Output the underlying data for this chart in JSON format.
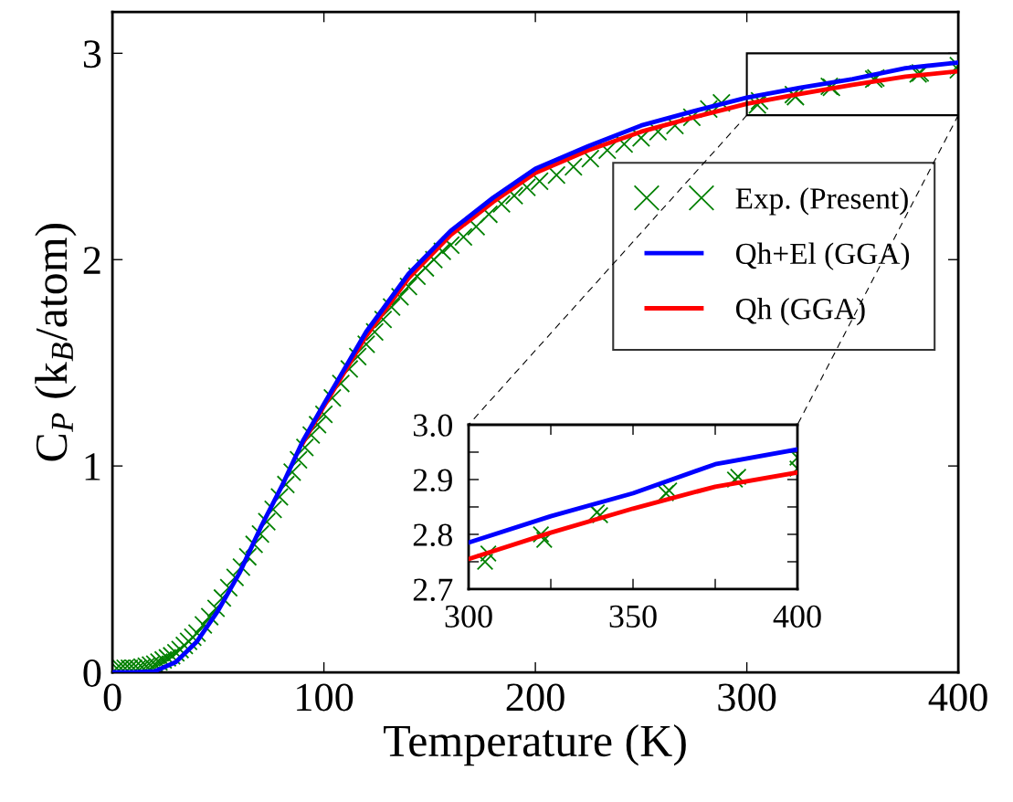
{
  "chart_data": [
    {
      "type": "line",
      "xlabel": "Temperature (K)",
      "ylabel": "C$_{P}$ (k$_{B}$/atom)",
      "xlim": [
        0,
        400
      ],
      "ylim": [
        0,
        3.2
      ],
      "xticks": [
        0,
        100,
        200,
        300,
        400
      ],
      "yticks": [
        0,
        1,
        2,
        3
      ],
      "legend": "right",
      "grid": false,
      "series": [
        {
          "name": "Exp. (Present)",
          "type": "scatter",
          "marker": "cross",
          "color": "#008000",
          "x": [
            2,
            4,
            6,
            8,
            10,
            12,
            14,
            16,
            18,
            20,
            22,
            24,
            26,
            28,
            30,
            32,
            34,
            36,
            38,
            40,
            43,
            46,
            49,
            52,
            55,
            58,
            61,
            64,
            67,
            70,
            73,
            76,
            79,
            82,
            85,
            88,
            91,
            94,
            97,
            100,
            104,
            108,
            112,
            116,
            120,
            124,
            128,
            132,
            136,
            140,
            144,
            148,
            152,
            156,
            160,
            166,
            172,
            178,
            184,
            190,
            196,
            202,
            210,
            218,
            226,
            234,
            242,
            250,
            258,
            266,
            274,
            282,
            288,
            305,
            306,
            322,
            323,
            339,
            340,
            361,
            360,
            381,
            382,
            400,
            400
          ],
          "values": [
            0.02,
            0.02,
            0.02,
            0.02,
            0.02,
            0.02,
            0.025,
            0.03,
            0.035,
            0.04,
            0.05,
            0.06,
            0.07,
            0.08,
            0.095,
            0.11,
            0.13,
            0.15,
            0.17,
            0.19,
            0.23,
            0.27,
            0.31,
            0.36,
            0.41,
            0.46,
            0.51,
            0.56,
            0.62,
            0.67,
            0.73,
            0.79,
            0.85,
            0.91,
            0.97,
            1.03,
            1.09,
            1.15,
            1.2,
            1.25,
            1.33,
            1.4,
            1.47,
            1.53,
            1.59,
            1.65,
            1.71,
            1.77,
            1.82,
            1.87,
            1.92,
            1.96,
            2.0,
            2.04,
            2.07,
            2.11,
            2.16,
            2.22,
            2.27,
            2.31,
            2.35,
            2.38,
            2.41,
            2.45,
            2.49,
            2.53,
            2.56,
            2.59,
            2.62,
            2.65,
            2.69,
            2.73,
            2.76,
            2.75,
            2.77,
            2.8,
            2.79,
            2.84,
            2.835,
            2.88,
            2.875,
            2.9,
            2.905,
            2.94,
            2.92
          ]
        },
        {
          "name": "Qh+El (GGA)",
          "color": "#0000ff",
          "x": [
            0,
            10,
            20,
            30,
            40,
            50,
            60,
            70,
            80,
            90,
            100,
            120,
            140,
            160,
            180,
            200,
            225,
            250,
            275,
            300,
            325,
            350,
            375,
            400
          ],
          "values": [
            0,
            0,
            0.005,
            0.05,
            0.15,
            0.3,
            0.48,
            0.7,
            0.9,
            1.12,
            1.3,
            1.65,
            1.93,
            2.14,
            2.3,
            2.44,
            2.55,
            2.65,
            2.72,
            2.785,
            2.833,
            2.875,
            2.928,
            2.955
          ]
        },
        {
          "name": "Qh (GGA)",
          "color": "#ff0000",
          "x": [
            90,
            100,
            120,
            140,
            160,
            180,
            200,
            225,
            250,
            275,
            300,
            325,
            350,
            375,
            400
          ],
          "values": [
            1.11,
            1.29,
            1.63,
            1.91,
            2.12,
            2.28,
            2.42,
            2.53,
            2.62,
            2.69,
            2.755,
            2.803,
            2.847,
            2.887,
            2.913
          ]
        }
      ]
    },
    {
      "type": "line",
      "xlim": [
        300,
        400
      ],
      "ylim": [
        2.7,
        3.0
      ],
      "xticks": [
        300,
        {
          "value": 325,
          "label": null
        },
        350,
        {
          "value": 375,
          "label": null
        },
        400
      ],
      "yticks": [
        {
          "value": 2.7,
          "label": "2.7"
        },
        {
          "value": 2.75,
          "label": null
        },
        {
          "value": 2.8,
          "label": "2.8"
        },
        {
          "value": 2.85,
          "label": null
        },
        {
          "value": 2.9,
          "label": "2.9"
        },
        {
          "value": 2.95,
          "label": null
        },
        {
          "value": 3.0,
          "label": "3.0"
        }
      ],
      "grid": false,
      "series": [
        {
          "type": "scatter",
          "marker": "cross",
          "color": "#008000",
          "x": [
            305,
            306,
            322,
            323,
            339,
            340,
            361,
            360,
            381,
            382,
            400,
            400
          ],
          "values": [
            2.75,
            2.765,
            2.8,
            2.79,
            2.84,
            2.835,
            2.88,
            2.875,
            2.9,
            2.905,
            2.94,
            2.92
          ]
        },
        {
          "color": "#0000ff",
          "x": [
            300,
            325,
            350,
            375,
            400
          ],
          "values": [
            2.785,
            2.833,
            2.875,
            2.928,
            2.955
          ]
        },
        {
          "color": "#ff0000",
          "x": [
            300,
            325,
            350,
            375,
            400
          ],
          "values": [
            2.755,
            2.803,
            2.847,
            2.887,
            2.913
          ]
        }
      ]
    }
  ]
}
